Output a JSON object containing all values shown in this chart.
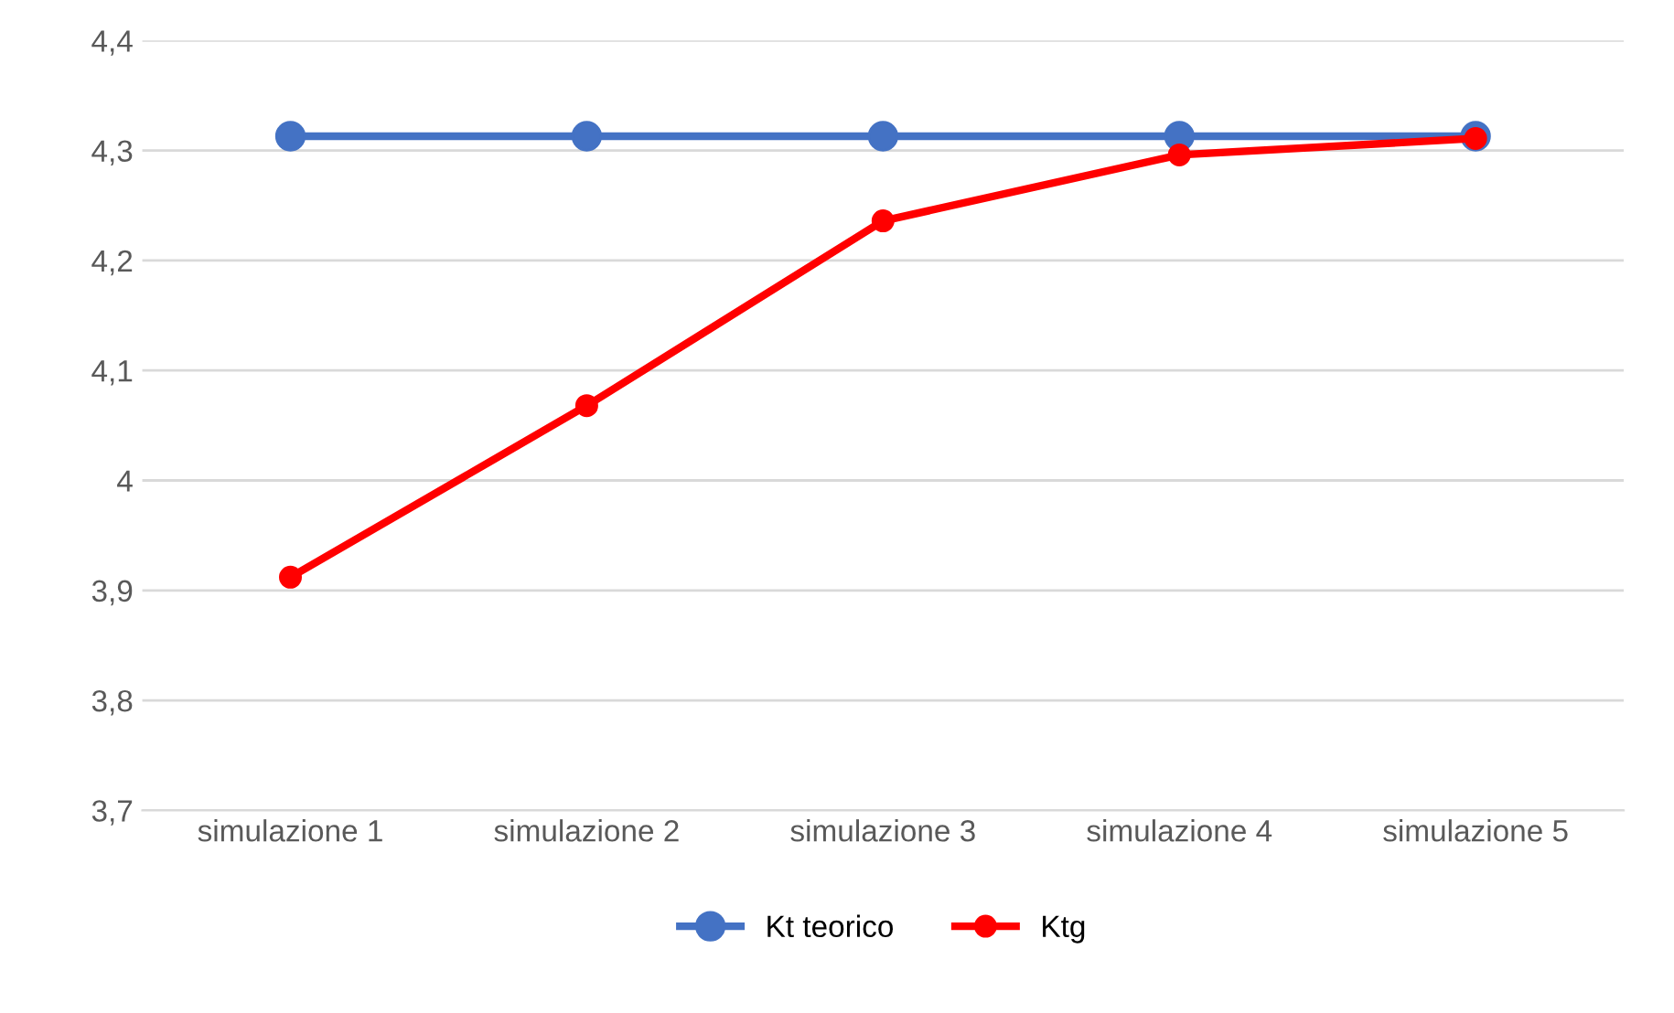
{
  "chart_data": {
    "type": "line",
    "categories": [
      "simulazione 1",
      "simulazione 2",
      "simulazione 3",
      "simulazione 4",
      "simulazione 5"
    ],
    "series": [
      {
        "name": "Kt teorico",
        "color": "#4472c4",
        "values": [
          4.313,
          4.313,
          4.313,
          4.313,
          4.313
        ]
      },
      {
        "name": "Ktg",
        "color": "#ff0000",
        "values": [
          3.912,
          4.068,
          4.236,
          4.296,
          4.311
        ]
      }
    ],
    "ylim": [
      3.7,
      4.4
    ],
    "yticks": [
      {
        "value": 3.7,
        "label": "3,7"
      },
      {
        "value": 3.8,
        "label": "3,8"
      },
      {
        "value": 3.9,
        "label": "3,9"
      },
      4,
      {
        "value": 4.1,
        "label": "4,1"
      },
      {
        "value": 4.2,
        "label": "4,2"
      },
      {
        "value": 4.3,
        "label": "4,3"
      },
      {
        "value": 4.4,
        "label": "4,4"
      }
    ],
    "grid": "y",
    "legend": "bottom",
    "marker": "circle",
    "line_style": "solid"
  }
}
